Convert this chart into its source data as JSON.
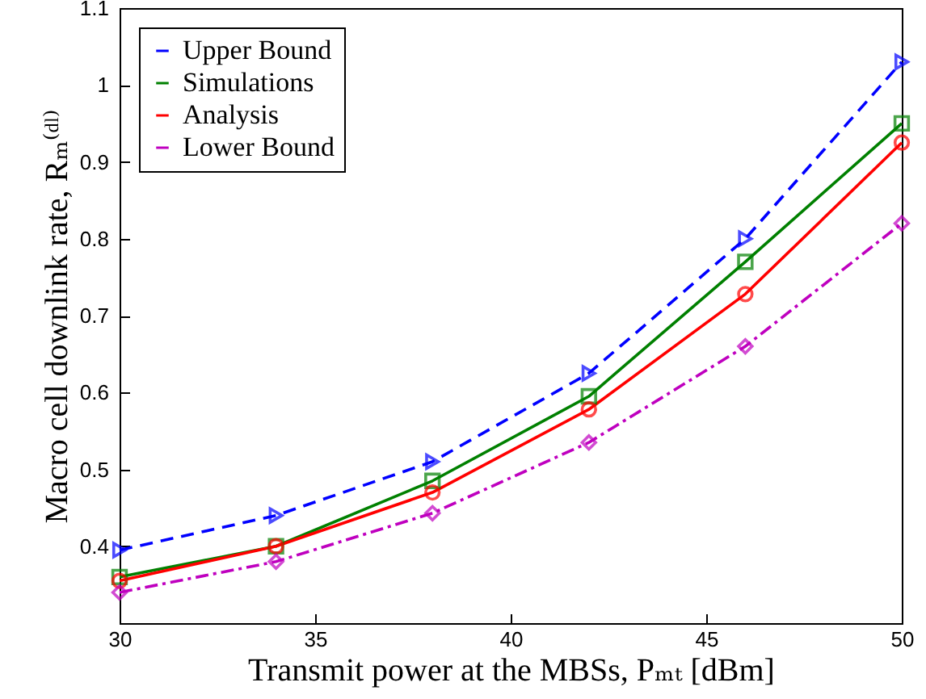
{
  "chart_data": {
    "type": "line",
    "xlabel": "Transmit power at the MBSs, Pₘₜ [dBm]",
    "ylabel": "Macro cell downlink rate, Rₘ⁽ᵈˡ⁾",
    "x": [
      30,
      34,
      38,
      42,
      46,
      50
    ],
    "xlim": [
      30,
      50
    ],
    "xticks": [
      30,
      35,
      40,
      45,
      50
    ],
    "ylim": [
      0.3,
      1.1
    ],
    "yticks": [
      0.4,
      0.5,
      0.6,
      0.7,
      0.8,
      0.9,
      1,
      1.1
    ],
    "grid": false,
    "legend": "top left",
    "series": [
      {
        "name": "Upper Bound",
        "color": "#0000ff",
        "marker": "triangle",
        "line_style": "dashed",
        "values": [
          0.395,
          0.44,
          0.51,
          0.625,
          0.8,
          1.03
        ]
      },
      {
        "name": "Simulations",
        "color": "#008000",
        "marker": "square",
        "line_style": "solid",
        "values": [
          0.36,
          0.4,
          0.485,
          0.595,
          0.77,
          0.95
        ]
      },
      {
        "name": "Analysis",
        "color": "#ff0000",
        "marker": "circle",
        "line_style": "solid",
        "values": [
          0.355,
          0.4,
          0.47,
          0.578,
          0.728,
          0.925
        ]
      },
      {
        "name": "Lower Bound",
        "color": "#bf00bf",
        "marker": "diamond",
        "line_style": "dashdot",
        "values": [
          0.34,
          0.38,
          0.443,
          0.535,
          0.66,
          0.82
        ]
      }
    ]
  }
}
